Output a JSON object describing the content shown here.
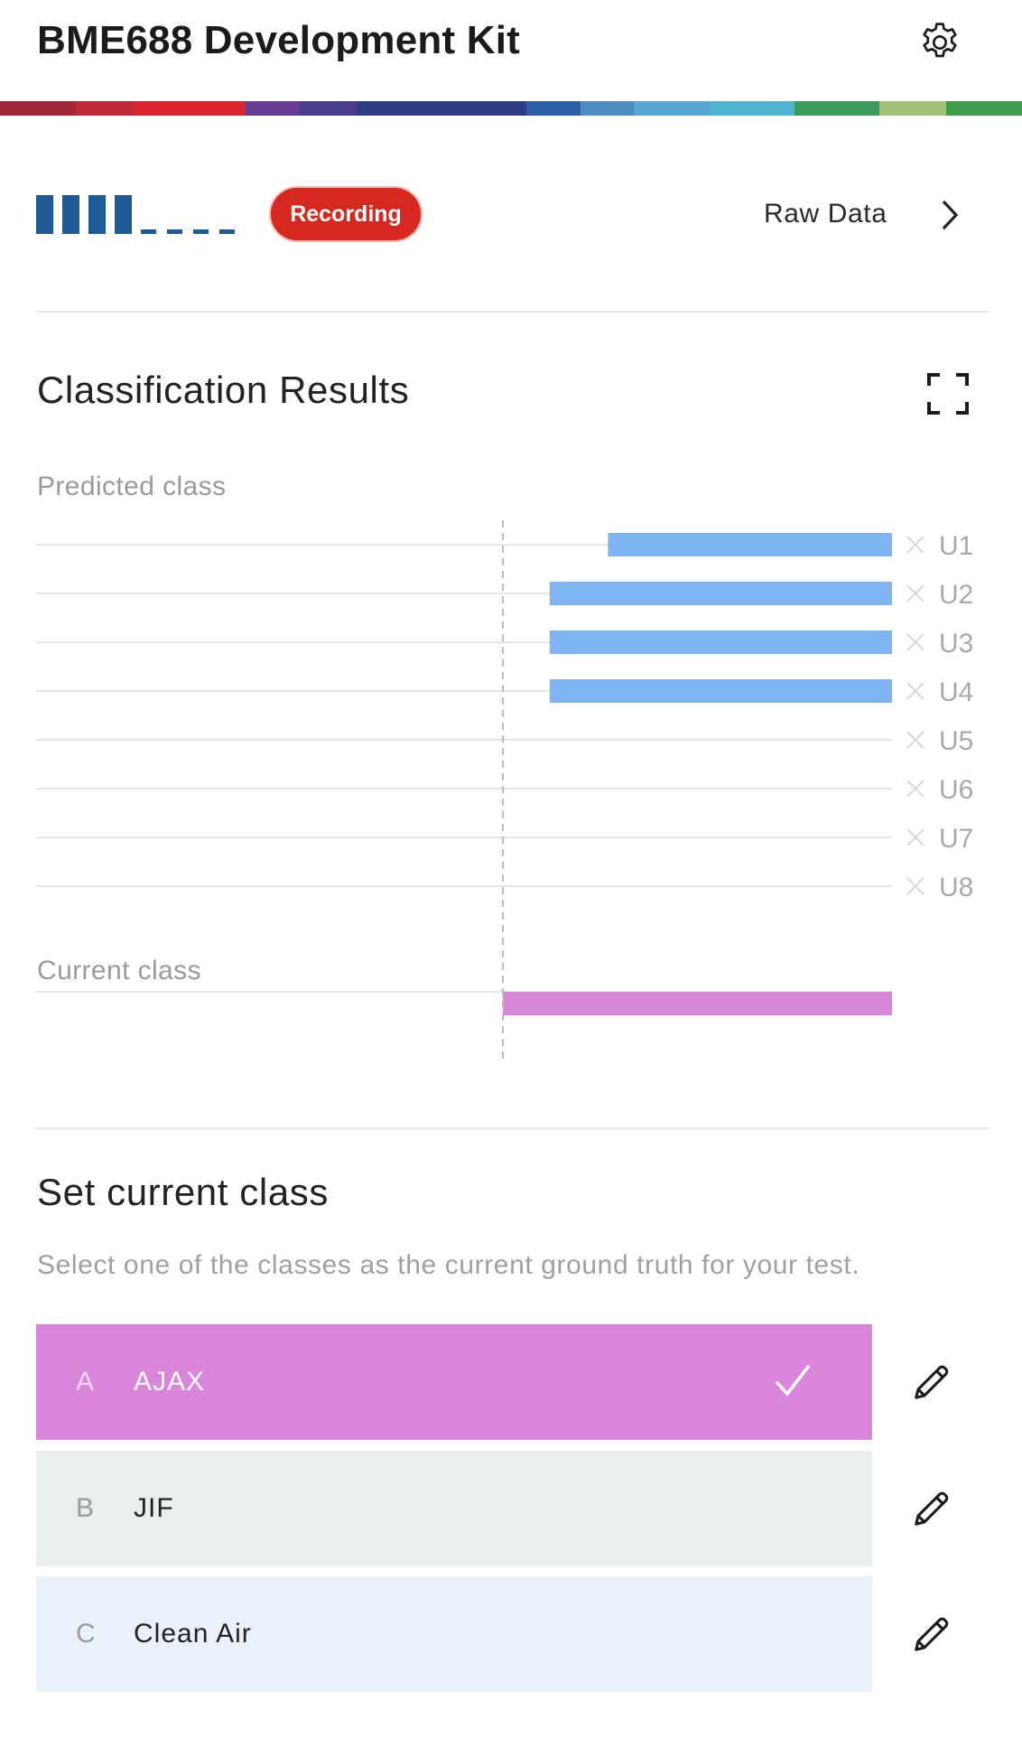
{
  "header": {
    "title": "BME688 Development Kit",
    "settings_icon": "gear-icon"
  },
  "color_strip": [
    {
      "color": "#a0263a",
      "weight": 85
    },
    {
      "color": "#c0293a",
      "weight": 65
    },
    {
      "color": "#d8242a",
      "weight": 125
    },
    {
      "color": "#6a3d94",
      "weight": 60
    },
    {
      "color": "#4a3c8e",
      "weight": 65
    },
    {
      "color": "#2e3d86",
      "weight": 190
    },
    {
      "color": "#2c5ea6",
      "weight": 60
    },
    {
      "color": "#4f8cc0",
      "weight": 60
    },
    {
      "color": "#58a7d2",
      "weight": 85
    },
    {
      "color": "#4eb3cc",
      "weight": 95
    },
    {
      "color": "#3a9a5e",
      "weight": 95
    },
    {
      "color": "#a3c178",
      "weight": 75
    },
    {
      "color": "#3f9b4c",
      "weight": 85
    }
  ],
  "status": {
    "signal_level": 4,
    "signal_max": 8,
    "badge": "Recording",
    "raw_data_link": "Raw Data"
  },
  "classification": {
    "title": "Classification Results",
    "predicted_label": "Predicted class",
    "current_label": "Current class"
  },
  "chart_data": {
    "type": "bar",
    "orientation": "horizontal",
    "categories": [
      "U1",
      "U2",
      "U3",
      "U4",
      "U5",
      "U6",
      "U7",
      "U8"
    ],
    "values": [
      0.73,
      0.88,
      0.88,
      0.88,
      0,
      0,
      0,
      0
    ],
    "xlim": [
      -1.2,
      1
    ],
    "bar_color": "#7db5f3",
    "current_class_value": 1,
    "current_class_color": "#d886d8",
    "reference_line": 0
  },
  "set_class": {
    "title": "Set current class",
    "description": "Select one of the classes as the current ground truth for your test.",
    "classes": [
      {
        "letter": "A",
        "name": "AJAX",
        "bg": "#d985d9",
        "fg": "#ffffff",
        "letter_color": "#f2d5f2",
        "selected": true
      },
      {
        "letter": "B",
        "name": "JIF",
        "bg": "#e9efea",
        "fg": "#222222",
        "letter_color": "#9a9a9a",
        "selected": false
      },
      {
        "letter": "C",
        "name": "Clean Air",
        "bg": "#eaf1fb",
        "fg": "#222222",
        "letter_color": "#9a9a9a",
        "selected": false
      }
    ],
    "edit_icon": "pencil-icon"
  }
}
